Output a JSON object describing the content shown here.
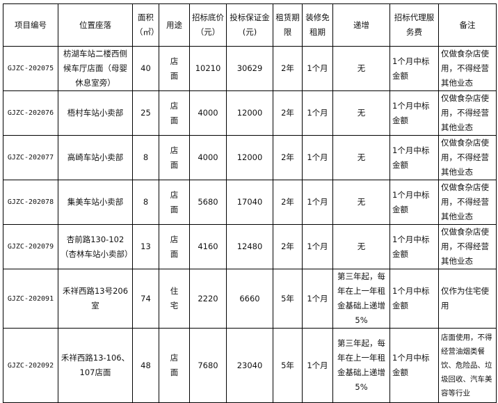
{
  "headers": [
    "项目编号",
    "位置座落",
    "面积（㎡）",
    "用途",
    "招标底价（元）",
    "投标保证金(元)",
    "租赁期限",
    "装修免租期",
    "递增",
    "招标代理服务费",
    "备注"
  ],
  "rows": [
    [
      "GJZC-202075",
      "枋湖车站二楼西侧候车厅店面（母婴休息室旁）",
      "40",
      "店面",
      "10210",
      "30629",
      "2年",
      "1个月",
      "无",
      "1个月中标金额",
      "仅做食杂店使用，不得经营其他业态"
    ],
    [
      "GJZC-202076",
      "梧村车站小卖部",
      "25",
      "店面",
      "4000",
      "12000",
      "2年",
      "1个月",
      "无",
      "1个月中标金额",
      "仅做食杂店使用，不得经营其他业态"
    ],
    [
      "GJZC-202077",
      "高崎车站小卖部",
      "8",
      "店面",
      "4000",
      "12000",
      "2年",
      "1个月",
      "无",
      "1个月中标金额",
      "仅做食杂店使用，不得经营其他业态"
    ],
    [
      "GJZC-202078",
      "集美车站小卖部",
      "8",
      "店面",
      "5680",
      "17040",
      "2年",
      "1个月",
      "无",
      "1个月中标金额",
      "仅做食杂店使用，不得经营其他业态"
    ],
    [
      "GJZC-202079",
      "杏前路130-102（杏林车站小卖部）",
      "13",
      "店面",
      "4160",
      "12480",
      "2年",
      "1个月",
      "无",
      "1个月中标金额",
      "仅做食杂店使用，不得经营其他业态"
    ],
    [
      "GJZC-202091",
      "禾祥西路13号206室",
      "74",
      "住宅",
      "2220",
      "6660",
      "5年",
      "1个月",
      "第三年起，每年在上一年租金基础上递增5%",
      "1个月中标金额",
      "仅作为住宅使用"
    ],
    [
      "GJZC-202092",
      "禾祥西路13-106、107店面",
      "48",
      "店面",
      "7680",
      "23040",
      "5年",
      "1个月",
      "第三年起，每年在上一年租金基础上递增5%",
      "1个月中标金额",
      "店面使用，不得经营油烟类餐饮、危险品、垃圾回收、汽车美容等行业"
    ]
  ]
}
